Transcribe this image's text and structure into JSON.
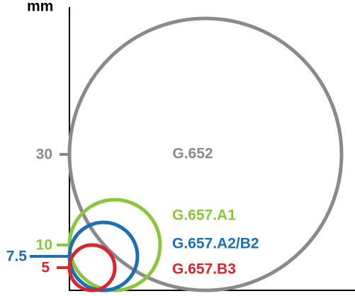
{
  "chart_data": {
    "type": "radius-circles",
    "y_label": "mm",
    "ylim": [
      0,
      62.5
    ],
    "yticks": [
      30,
      10,
      7.5,
      5
    ],
    "series": [
      {
        "name": "G.652",
        "color": "#8a8a8a",
        "value": 30
      },
      {
        "name": "G.657.A1",
        "color": "#8cc63f",
        "value": 10
      },
      {
        "name": "G.657.A2/B2",
        "color": "#1a6fb5",
        "value": 7.5
      },
      {
        "name": "G.657.B3",
        "color": "#d7262e",
        "value": 5
      }
    ]
  }
}
